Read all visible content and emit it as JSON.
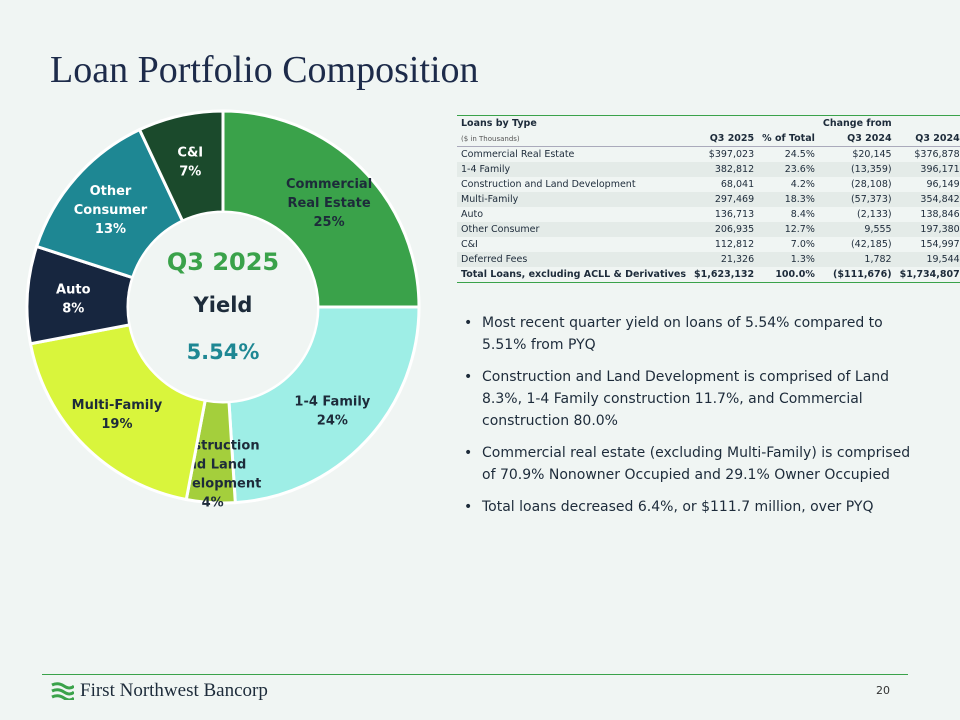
{
  "title": "Loan Portfolio Composition",
  "chart_data": {
    "type": "pie",
    "donut": true,
    "center_text": [
      "Q3 2025",
      "Yield",
      "5.54%"
    ],
    "categories": [
      "Commercial Real Estate",
      "1-4 Family",
      "Construction and Land Development",
      "Multi-Family",
      "Auto",
      "Other Consumer",
      "C&I"
    ],
    "label_lines": [
      [
        "Commercial",
        "Real Estate",
        "25%"
      ],
      [
        "1-4 Family",
        "24%"
      ],
      [
        "Construction",
        "and Land",
        "Development",
        "4%"
      ],
      [
        "Multi-Family",
        "19%"
      ],
      [
        "Auto",
        "8%"
      ],
      [
        "Other",
        "Consumer",
        "13%"
      ],
      [
        "C&I",
        "7%"
      ]
    ],
    "values": [
      25,
      24,
      4,
      19,
      8,
      13,
      7
    ],
    "colors": [
      "#3aa24a",
      "#9eeee6",
      "#a4cf3c",
      "#d9f53c",
      "#17263f",
      "#1e8793",
      "#1b4a2c"
    ],
    "label_colors": [
      "#1d2b3a",
      "#1d2b3a",
      "#1d2b3a",
      "#1d2b3a",
      "#ffffff",
      "#ffffff",
      "#ffffff"
    ]
  },
  "table": {
    "title": "Loans by Type",
    "subtitle": "($ in Thousands)",
    "change_header": "Change from",
    "headers": [
      "Q3 2025",
      "% of Total",
      "Q3 2024",
      "Q3 2024"
    ],
    "rows": [
      [
        "Commercial Real Estate",
        "$397,023",
        "24.5%",
        "$20,145",
        "$376,878"
      ],
      [
        "1-4 Family",
        "382,812",
        "23.6%",
        "(13,359)",
        "396,171"
      ],
      [
        "Construction and Land Development",
        "68,041",
        "4.2%",
        "(28,108)",
        "96,149"
      ],
      [
        "Multi-Family",
        "297,469",
        "18.3%",
        "(57,373)",
        "354,842"
      ],
      [
        "Auto",
        "136,713",
        "8.4%",
        "(2,133)",
        "138,846"
      ],
      [
        "Other Consumer",
        "206,935",
        "12.7%",
        "9,555",
        "197,380"
      ],
      [
        "C&I",
        "112,812",
        "7.0%",
        "(42,185)",
        "154,997"
      ],
      [
        "Deferred Fees",
        "21,326",
        "1.3%",
        "1,782",
        "19,544"
      ],
      [
        "Total Loans, excluding ACLL & Derivatives",
        "$1,623,132",
        "100.0%",
        "($111,676)",
        "$1,734,807"
      ]
    ]
  },
  "bullets": [
    "Most recent quarter yield on loans of 5.54% compared to 5.51% from PYQ",
    "Construction and Land Development is comprised of Land 8.3%, 1-4 Family construction 11.7%, and Commercial construction 80.0%",
    "Commercial real estate (excluding Multi-Family) is comprised of 70.9% Nonowner Occupied and 29.1% Owner Occupied",
    "Total loans decreased 6.4%, or $111.7 million, over PYQ"
  ],
  "footer": {
    "logo": "First Northwest Bancorp",
    "page": "20"
  }
}
